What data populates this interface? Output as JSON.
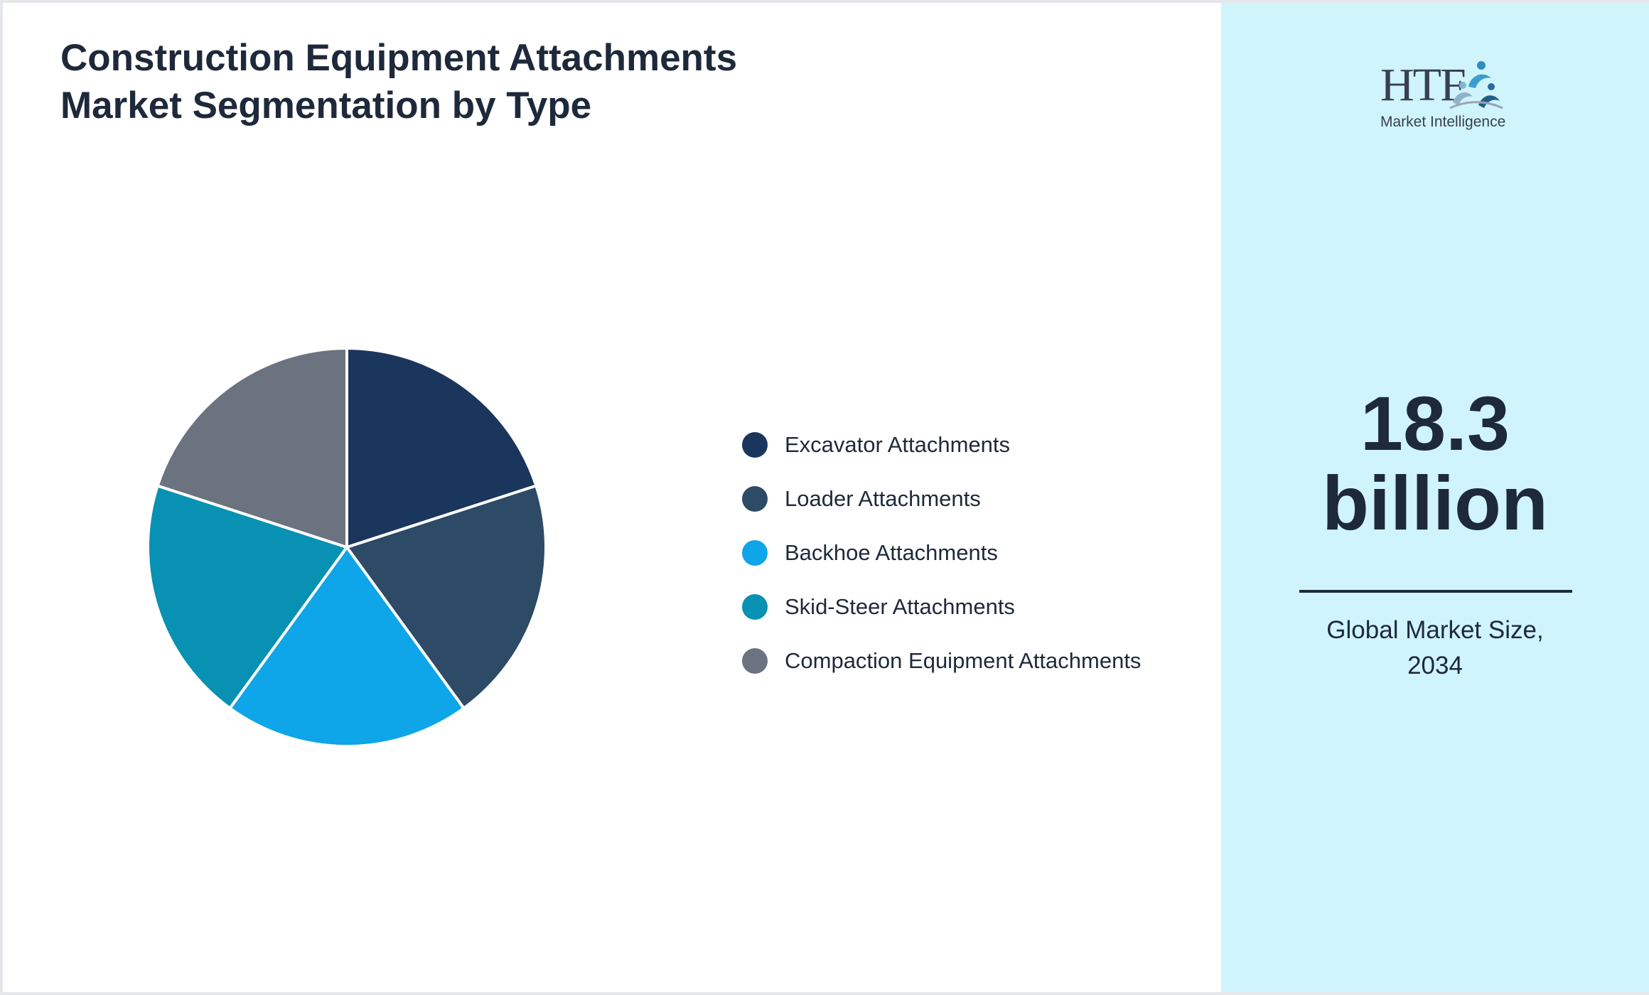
{
  "title": "Construction Equipment Attachments Market Segmentation by Type",
  "chart_data": {
    "type": "pie",
    "title": "Construction Equipment Attachments Market Segmentation by Type",
    "categories": [
      "Excavator Attachments",
      "Loader Attachments",
      "Backhoe Attachments",
      "Skid-Steer Attachments",
      "Compaction Equipment Attachments"
    ],
    "values": [
      20,
      20,
      20,
      20,
      20
    ],
    "colors": [
      "#1b365d",
      "#2d4a66",
      "#0ea5e9",
      "#0891b2",
      "#6b7280"
    ],
    "legend_position": "right"
  },
  "legend": {
    "items": [
      {
        "label": "Excavator Attachments",
        "color": "#1b365d"
      },
      {
        "label": "Loader Attachments",
        "color": "#2d4a66"
      },
      {
        "label": "Backhoe Attachments",
        "color": "#0ea5e9"
      },
      {
        "label": "Skid-Steer Attachments",
        "color": "#0891b2"
      },
      {
        "label": "Compaction Equipment Attachments",
        "color": "#6b7280"
      }
    ]
  },
  "sidebar": {
    "logo": {
      "brand": "HTF",
      "tagline": "Market Intelligence"
    },
    "value_line1": "18.3",
    "value_line2": "billion",
    "caption_line1": "Global Market Size,",
    "caption_line2": "2034"
  },
  "colors": {
    "sidebar_bg": "#cff4fc",
    "text": "#1e293b"
  }
}
